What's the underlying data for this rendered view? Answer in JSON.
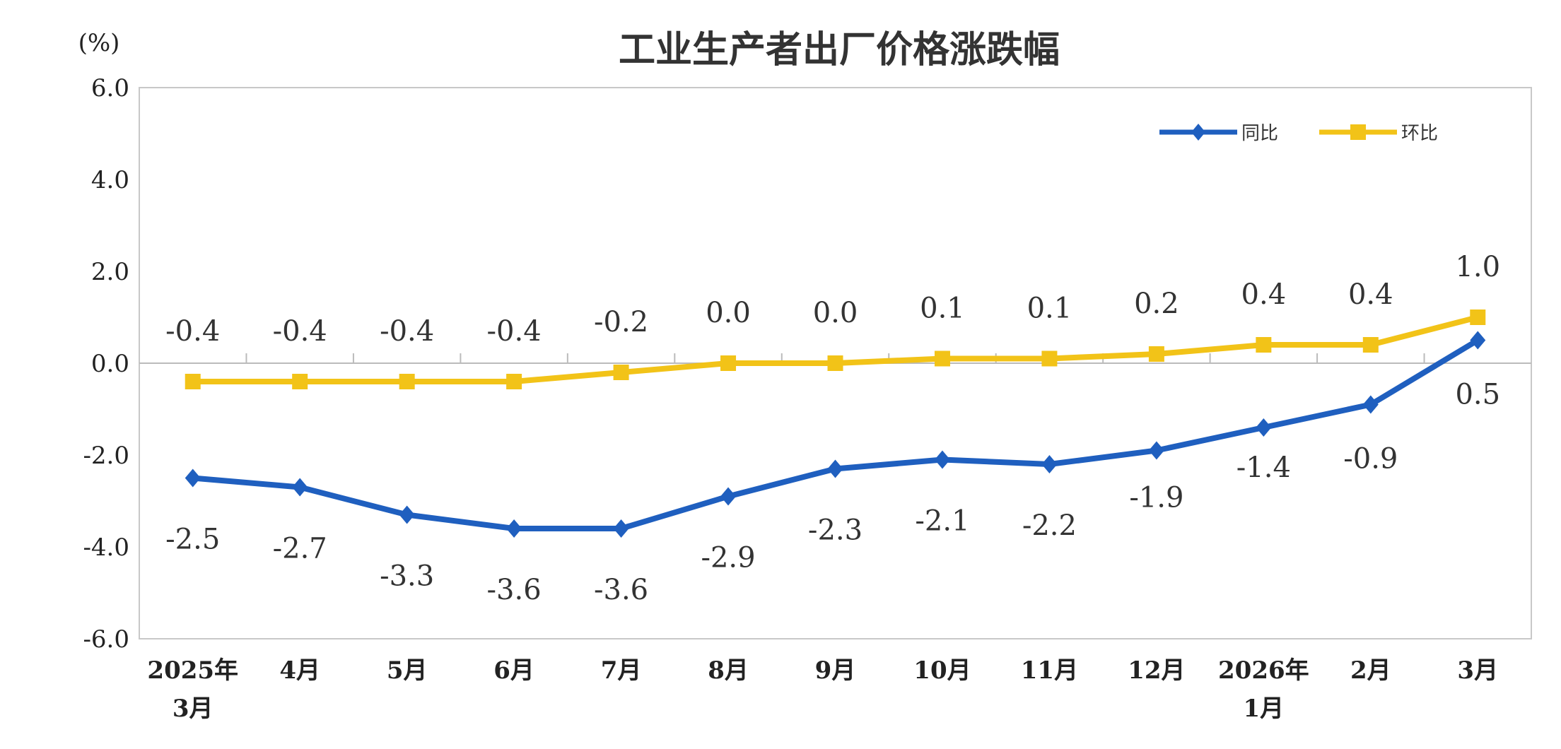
{
  "chart_data": {
    "type": "line",
    "title": "工业生产者出厂价格涨跌幅",
    "ylabel": "(%)",
    "xlabel": "",
    "ylim": [
      -6.0,
      6.0
    ],
    "yticks": [
      "6.0",
      "4.0",
      "2.0",
      "0.0",
      "-2.0",
      "-4.0",
      "-6.0"
    ],
    "ytick_values": [
      6,
      4,
      2,
      0,
      -2,
      -4,
      -6
    ],
    "categories": [
      [
        "2025年",
        "3月"
      ],
      [
        "4月"
      ],
      [
        "5月"
      ],
      [
        "6月"
      ],
      [
        "7月"
      ],
      [
        "8月"
      ],
      [
        "9月"
      ],
      [
        "10月"
      ],
      [
        "11月"
      ],
      [
        "12月"
      ],
      [
        "2026年",
        "1月"
      ],
      [
        "2月"
      ],
      [
        "3月"
      ]
    ],
    "grid": false,
    "legend_position": "top-right",
    "series": [
      {
        "name": "同比",
        "color": "#1F5FBF",
        "marker": "diamond",
        "values": [
          -2.5,
          -2.7,
          -3.3,
          -3.6,
          -3.6,
          -2.9,
          -2.3,
          -2.1,
          -2.2,
          -1.9,
          -1.4,
          -0.9,
          0.5
        ],
        "labels": [
          "-2.5",
          "-2.7",
          "-3.3",
          "-3.6",
          "-3.6",
          "-2.9",
          "-2.3",
          "-2.1",
          "-2.2",
          "-1.9",
          "-1.4",
          "-0.9",
          "0.5"
        ]
      },
      {
        "name": "环比",
        "color": "#F2C318",
        "marker": "square",
        "values": [
          -0.4,
          -0.4,
          -0.4,
          -0.4,
          -0.2,
          0.0,
          0.0,
          0.1,
          0.1,
          0.2,
          0.4,
          0.4,
          1.0
        ],
        "labels": [
          "-0.4",
          "-0.4",
          "-0.4",
          "-0.4",
          "-0.2",
          "0.0",
          "0.0",
          "0.1",
          "0.1",
          "0.2",
          "0.4",
          "0.4",
          "1.0"
        ]
      }
    ]
  }
}
